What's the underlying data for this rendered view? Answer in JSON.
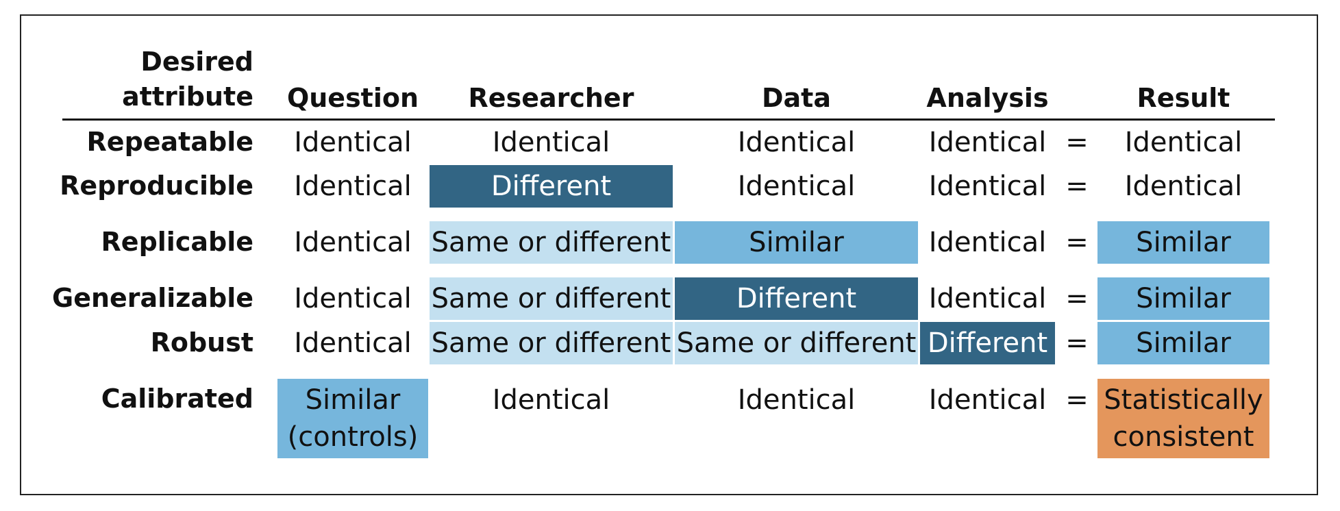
{
  "headers": {
    "attribute": "Desired\nattribute",
    "question": "Question",
    "researcher": "Researcher",
    "data": "Data",
    "analysis": "Analysis",
    "result": "Result"
  },
  "equals": "=",
  "rows": [
    {
      "label": "Repeatable",
      "question": "Identical",
      "researcher": "Identical",
      "data": "Identical",
      "analysis": "Identical",
      "result": "Identical"
    },
    {
      "label": "Reproducible",
      "question": "Identical",
      "researcher": "Different",
      "data": "Identical",
      "analysis": "Identical",
      "result": "Identical"
    },
    {
      "label": "Replicable",
      "question": "Identical",
      "researcher": "Same or different",
      "data": "Similar",
      "analysis": "Identical",
      "result": "Similar"
    },
    {
      "label": "Generalizable",
      "question": "Identical",
      "researcher": "Same or different",
      "data": "Different",
      "analysis": "Identical",
      "result": "Similar"
    },
    {
      "label": "Robust",
      "question": "Identical",
      "researcher": "Same or different",
      "data": "Same or different",
      "analysis": "Different",
      "result": "Similar"
    },
    {
      "label": "Calibrated",
      "question": "Similar\n(controls)",
      "researcher": "Identical",
      "data": "Identical",
      "analysis": "Identical",
      "result": "Statistically\nconsistent"
    }
  ],
  "colors": {
    "dark_blue": "#326584",
    "medium_blue": "#76b6dc",
    "light_blue": "#c3e0f0",
    "orange": "#e4965c"
  }
}
